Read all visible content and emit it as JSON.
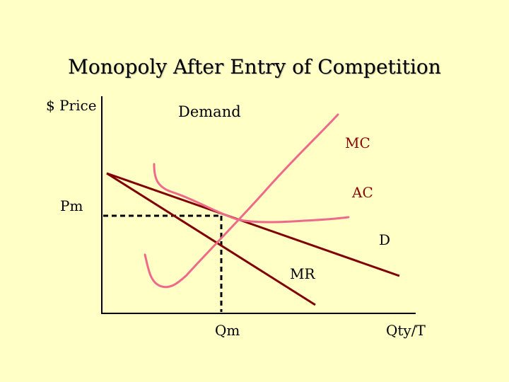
{
  "title": "Monopoly After Entry of Competition",
  "labels": {
    "y_axis": "$ Price",
    "x_axis": "Qty/T",
    "demand_heading": "Demand",
    "mc": "MC",
    "ac": "AC",
    "d": "D",
    "mr": "MR",
    "pm": "Pm",
    "qm": "Qm"
  },
  "colors": {
    "background": "#FFFFC6",
    "demand_mr": "#800000",
    "cost_curves": "#EE6A8A",
    "axes": "#000000"
  }
}
